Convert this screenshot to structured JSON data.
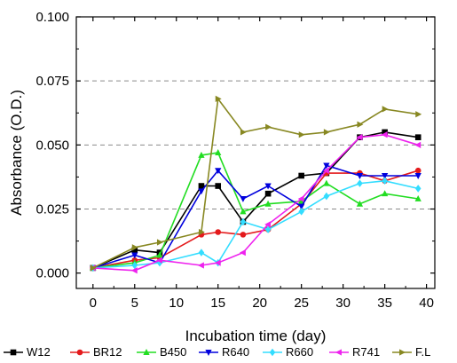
{
  "chart_data": {
    "type": "line",
    "title": "",
    "xlabel": "Incubation time (day)",
    "ylabel": "Absorbance (O.D.)",
    "xlim": [
      -2,
      41
    ],
    "ylim": [
      -0.006,
      0.1
    ],
    "x_ticks": [
      0,
      5,
      10,
      15,
      20,
      25,
      30,
      35,
      40
    ],
    "y_ticks": [
      0.0,
      0.025,
      0.05,
      0.075,
      0.1
    ],
    "y_tick_labels": [
      "0.000",
      "0.025",
      "0.050",
      "0.075",
      "0.100"
    ],
    "grid": "horizontal dashed at y ticks",
    "legend_position": "bottom",
    "series": [
      {
        "name": "W12",
        "color": "#000000",
        "marker": "square",
        "x": [
          0,
          5,
          8,
          13,
          15,
          18,
          21,
          25,
          28,
          32,
          35,
          39
        ],
        "y": [
          0.002,
          0.009,
          0.008,
          0.034,
          0.034,
          0.02,
          0.031,
          0.038,
          0.039,
          0.053,
          0.055,
          0.053
        ]
      },
      {
        "name": "BR12",
        "color": "#e41a1c",
        "marker": "circle",
        "x": [
          0,
          5,
          8,
          13,
          15,
          18,
          21,
          25,
          28,
          32,
          35,
          39
        ],
        "y": [
          0.002,
          0.005,
          0.006,
          0.015,
          0.016,
          0.015,
          0.017,
          0.027,
          0.039,
          0.039,
          0.036,
          0.04
        ]
      },
      {
        "name": "B450",
        "color": "#22dd22",
        "marker": "triangle-up",
        "x": [
          0,
          5,
          8,
          13,
          15,
          18,
          21,
          25,
          28,
          32,
          35,
          39
        ],
        "y": [
          0.002,
          0.004,
          0.007,
          0.046,
          0.047,
          0.024,
          0.027,
          0.028,
          0.035,
          0.027,
          0.031,
          0.029
        ]
      },
      {
        "name": "R640",
        "color": "#0000dd",
        "marker": "triangle-down",
        "x": [
          0,
          5,
          8,
          13,
          15,
          18,
          21,
          25,
          28,
          32,
          35,
          39
        ],
        "y": [
          0.002,
          0.007,
          0.004,
          0.032,
          0.04,
          0.029,
          0.034,
          0.026,
          0.042,
          0.038,
          0.038,
          0.038
        ]
      },
      {
        "name": "R660",
        "color": "#33ddff",
        "marker": "diamond",
        "x": [
          0,
          5,
          8,
          13,
          15,
          18,
          21,
          25,
          28,
          32,
          35,
          39
        ],
        "y": [
          0.002,
          0.003,
          0.004,
          0.008,
          0.004,
          0.02,
          0.017,
          0.024,
          0.03,
          0.035,
          0.036,
          0.033
        ]
      },
      {
        "name": "R741",
        "color": "#ee22ee",
        "marker": "triangle-left",
        "x": [
          0,
          5,
          8,
          13,
          15,
          18,
          21,
          25,
          28,
          32,
          35,
          39
        ],
        "y": [
          0.002,
          0.001,
          0.005,
          0.003,
          0.004,
          0.008,
          0.019,
          0.029,
          0.04,
          0.053,
          0.054,
          0.05
        ]
      },
      {
        "name": "F.L",
        "color": "#888822",
        "marker": "triangle-right",
        "x": [
          0,
          5,
          8,
          13,
          15,
          18,
          21,
          25,
          28,
          32,
          35,
          39
        ],
        "y": [
          0.002,
          0.01,
          0.012,
          0.016,
          0.068,
          0.055,
          0.057,
          0.054,
          0.055,
          0.058,
          0.064,
          0.062
        ]
      }
    ]
  }
}
